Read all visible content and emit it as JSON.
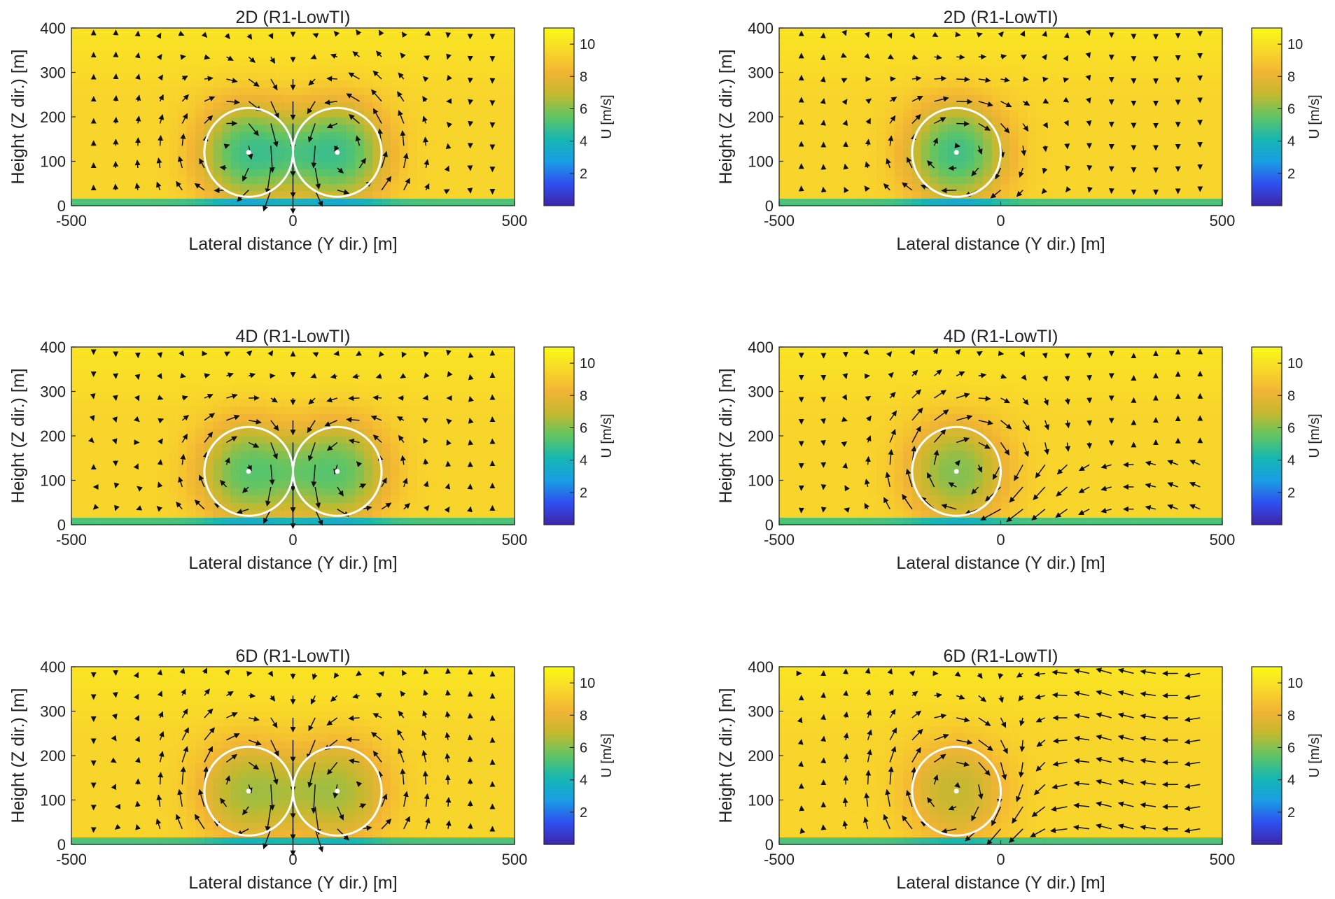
{
  "figure": {
    "colormap": [
      "#3e26a8",
      "#2f50f0",
      "#1a9ee3",
      "#16b7b2",
      "#5fc565",
      "#c2b92f",
      "#f2b434",
      "#f9d82a",
      "#f9fb15"
    ]
  },
  "chart_data": [
    {
      "type": "heatmap",
      "title": "2D (R1-LowTI)",
      "xlabel": "Lateral distance (Y dir.) [m]",
      "ylabel": "Height (Z dir.) [m]",
      "xlim": [
        -500,
        500
      ],
      "ylim": [
        0,
        400
      ],
      "xticks": [
        "-500",
        "0",
        "500"
      ],
      "yticks": [
        "0",
        "100",
        "200",
        "300",
        "400"
      ],
      "colorbar": {
        "label": "U [m/s]",
        "range": [
          0,
          11
        ],
        "ticks": [
          "2",
          "4",
          "6",
          "8",
          "10"
        ]
      },
      "turbines": [
        {
          "y": -100,
          "z": 120,
          "radius": 100,
          "hub_velocity": 5.0
        },
        {
          "y": 100,
          "z": 120,
          "radius": 100,
          "hub_velocity": 5.0
        }
      ],
      "freestream_velocity": 9.5,
      "quiver": "counter-rotating vortex pairs"
    },
    {
      "type": "heatmap",
      "title": "2D (R1-LowTI)",
      "xlabel": "Lateral distance (Y dir.) [m]",
      "ylabel": "Height (Z dir.) [m]",
      "xlim": [
        -500,
        500
      ],
      "ylim": [
        0,
        400
      ],
      "xticks": [
        "-500",
        "0",
        "500"
      ],
      "yticks": [
        "0",
        "100",
        "200",
        "300",
        "400"
      ],
      "colorbar": {
        "label": "U [m/s]",
        "range": [
          0,
          11
        ],
        "ticks": [
          "2",
          "4",
          "6",
          "8",
          "10"
        ]
      },
      "turbines": [
        {
          "y": -100,
          "z": 120,
          "radius": 100,
          "hub_velocity": 5.0
        }
      ],
      "freestream_velocity": 9.5,
      "quiver": "single rotating wake"
    },
    {
      "type": "heatmap",
      "title": "4D (R1-LowTI)",
      "xlabel": "Lateral distance (Y dir.) [m]",
      "ylabel": "Height (Z dir.) [m]",
      "xlim": [
        -500,
        500
      ],
      "ylim": [
        0,
        400
      ],
      "xticks": [
        "-500",
        "0",
        "500"
      ],
      "yticks": [
        "0",
        "100",
        "200",
        "300",
        "400"
      ],
      "colorbar": {
        "label": "U [m/s]",
        "range": [
          0,
          11
        ],
        "ticks": [
          "2",
          "4",
          "6",
          "8",
          "10"
        ]
      },
      "turbines": [
        {
          "y": -100,
          "z": 120,
          "radius": 100,
          "hub_velocity": 5.5
        },
        {
          "y": 100,
          "z": 120,
          "radius": 100,
          "hub_velocity": 5.5
        }
      ],
      "freestream_velocity": 9.5,
      "quiver": "counter-rotating vortex pairs"
    },
    {
      "type": "heatmap",
      "title": "4D (R1-LowTI)",
      "xlabel": "Lateral distance (Y dir.) [m]",
      "ylabel": "Height (Z dir.) [m]",
      "xlim": [
        -500,
        500
      ],
      "ylim": [
        0,
        400
      ],
      "xticks": [
        "-500",
        "0",
        "500"
      ],
      "yticks": [
        "0",
        "100",
        "200",
        "300",
        "400"
      ],
      "colorbar": {
        "label": "U [m/s]",
        "range": [
          0,
          11
        ],
        "ticks": [
          "2",
          "4",
          "6",
          "8",
          "10"
        ]
      },
      "turbines": [
        {
          "y": -100,
          "z": 120,
          "radius": 100,
          "hub_velocity": 6.0
        }
      ],
      "freestream_velocity": 9.5,
      "quiver": "single rotating wake"
    },
    {
      "type": "heatmap",
      "title": "6D (R1-LowTI)",
      "xlabel": "Lateral distance (Y dir.) [m]",
      "ylabel": "Height (Z dir.) [m]",
      "xlim": [
        -500,
        500
      ],
      "ylim": [
        0,
        400
      ],
      "xticks": [
        "-500",
        "0",
        "500"
      ],
      "yticks": [
        "0",
        "100",
        "200",
        "300",
        "400"
      ],
      "colorbar": {
        "label": "U [m/s]",
        "range": [
          0,
          11
        ],
        "ticks": [
          "2",
          "4",
          "6",
          "8",
          "10"
        ]
      },
      "turbines": [
        {
          "y": -100,
          "z": 120,
          "radius": 100,
          "hub_velocity": 6.5
        },
        {
          "y": 100,
          "z": 120,
          "radius": 100,
          "hub_velocity": 6.5
        }
      ],
      "freestream_velocity": 9.5,
      "quiver": "counter-rotating vortex pairs"
    },
    {
      "type": "heatmap",
      "title": "6D (R1-LowTI)",
      "xlabel": "Lateral distance (Y dir.) [m]",
      "ylabel": "Height (Z dir.) [m]",
      "xlim": [
        -500,
        500
      ],
      "ylim": [
        0,
        400
      ],
      "xticks": [
        "-500",
        "0",
        "500"
      ],
      "yticks": [
        "0",
        "100",
        "200",
        "300",
        "400"
      ],
      "colorbar": {
        "label": "U [m/s]",
        "range": [
          0,
          11
        ],
        "ticks": [
          "2",
          "4",
          "6",
          "8",
          "10"
        ]
      },
      "turbines": [
        {
          "y": -100,
          "z": 120,
          "radius": 100,
          "hub_velocity": 7.0
        }
      ],
      "freestream_velocity": 9.5,
      "quiver": "single rotating wake with strong lateral flow"
    }
  ]
}
